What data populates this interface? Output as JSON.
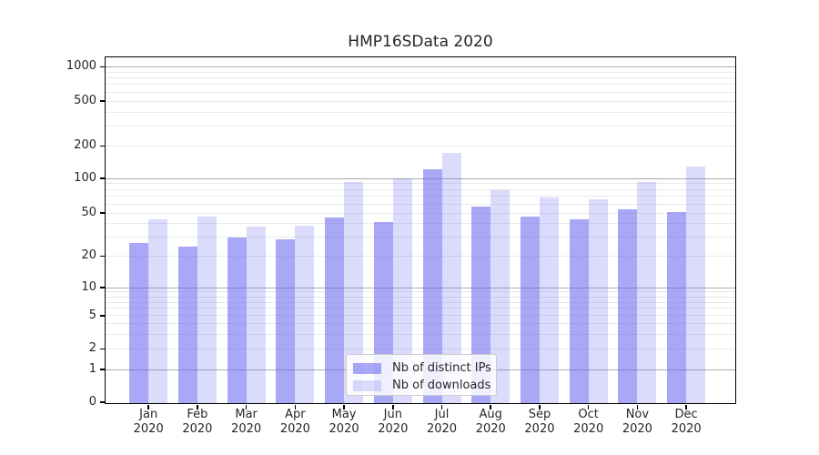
{
  "title": "HMP16SData 2020",
  "colors": {
    "bar_distinct_ips": "rgba(105,105,240,0.58)",
    "bar_downloads": "rgba(105,105,240,0.24)",
    "grid_minor": "#e9e9e9",
    "grid_major": "#ababab",
    "axis": "#000000",
    "text": "#262626"
  },
  "legend": {
    "items": [
      {
        "label": "Nb of distinct IPs",
        "color_key": "bar_distinct_ips"
      },
      {
        "label": "Nb of downloads",
        "color_key": "bar_downloads"
      }
    ],
    "position": "inside lower center"
  },
  "x_axis": {
    "months": [
      "Jan",
      "Feb",
      "Mar",
      "Apr",
      "May",
      "Jun",
      "Jul",
      "Aug",
      "Sep",
      "Oct",
      "Nov",
      "Dec"
    ],
    "year_line": "2020"
  },
  "y_axis": {
    "tick_labels": [
      "0",
      "1",
      "2",
      "5",
      "10",
      "20",
      "50",
      "100",
      "200",
      "500",
      "1000"
    ]
  },
  "chart_data": {
    "type": "bar",
    "title": "HMP16SData 2020",
    "categories": [
      "Jan 2020",
      "Feb 2020",
      "Mar 2020",
      "Apr 2020",
      "May 2020",
      "Jun 2020",
      "Jul 2020",
      "Aug 2020",
      "Sep 2020",
      "Oct 2020",
      "Nov 2020",
      "Dec 2020"
    ],
    "series": [
      {
        "name": "Nb of distinct IPs",
        "values": [
          27,
          25,
          30,
          29,
          46,
          42,
          124,
          58,
          47,
          45,
          55,
          52
        ]
      },
      {
        "name": "Nb of downloads",
        "values": [
          45,
          47,
          38,
          39,
          94,
          103,
          178,
          81,
          70,
          67,
          94,
          131
        ]
      }
    ],
    "xlabel": "",
    "ylabel": "",
    "yscale": "symlog",
    "y_ticks": [
      0,
      1,
      2,
      5,
      10,
      20,
      50,
      100,
      200,
      500,
      1000
    ],
    "ylim": [
      0,
      1300
    ],
    "grid": true,
    "legend_position": "lower center (inside plot)"
  }
}
